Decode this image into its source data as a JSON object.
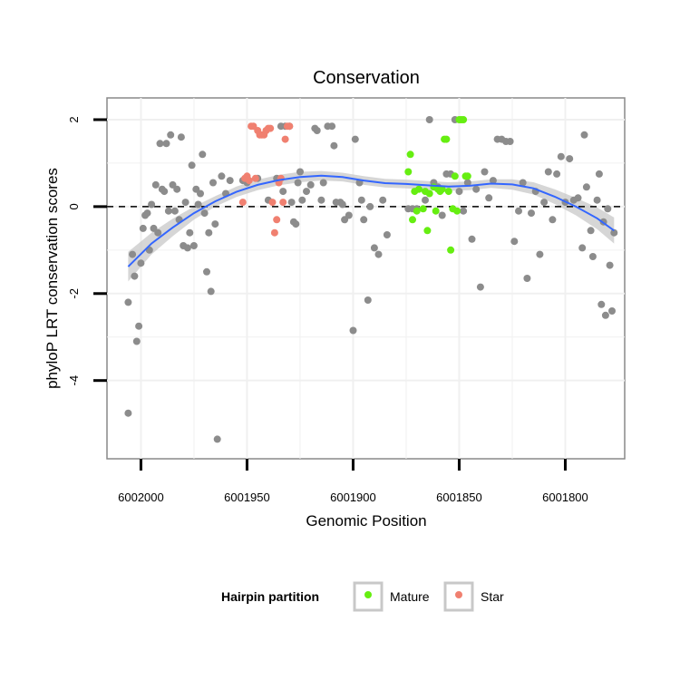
{
  "chart_data": {
    "type": "scatter",
    "title": "Conservation",
    "xlabel": "Genomic Position",
    "ylabel": "phyloP LRT conservation scores",
    "x_reversed": true,
    "xlim": [
      6002016,
      6001772
    ],
    "ylim": [
      -5.8,
      2.5
    ],
    "x_ticks": [
      6002000,
      6001950,
      6001900,
      6001850,
      6001800
    ],
    "x_tick_labels": [
      "6002000",
      "6001950",
      "6001900",
      "6001850",
      "6001800"
    ],
    "y_ticks": [
      -4,
      -2,
      0,
      2
    ],
    "y_tick_labels": [
      "-4",
      "-2",
      "0",
      "2"
    ],
    "reference_line": {
      "y": 0,
      "style": "dashed"
    },
    "colors": {
      "other": "#8c8c8c",
      "mature": "#66ee11",
      "star": "#f08070",
      "smooth": "#3366ff",
      "ribbon": "#c8c8c8",
      "panel_border": "#888888",
      "grid": "#f0f0f0"
    },
    "legend": {
      "title": "Hairpin partition",
      "entries": [
        {
          "label": "Mature",
          "color": "#66ee11"
        },
        {
          "label": "Star",
          "color": "#f08070"
        }
      ],
      "position": "bottom"
    },
    "smooth": {
      "x": [
        6002006,
        6001995,
        6001985,
        6001975,
        6001965,
        6001955,
        6001945,
        6001935,
        6001925,
        6001915,
        6001905,
        6001895,
        6001885,
        6001875,
        6001865,
        6001855,
        6001845,
        6001835,
        6001825,
        6001815,
        6001805,
        6001795,
        6001785,
        6001777
      ],
      "y": [
        -1.38,
        -0.85,
        -0.48,
        -0.15,
        0.12,
        0.34,
        0.5,
        0.61,
        0.68,
        0.71,
        0.68,
        0.6,
        0.54,
        0.52,
        0.49,
        0.46,
        0.48,
        0.53,
        0.51,
        0.42,
        0.23,
        0.0,
        -0.27,
        -0.55
      ],
      "lower": [
        -1.72,
        -1.1,
        -0.68,
        -0.3,
        0.0,
        0.22,
        0.38,
        0.49,
        0.56,
        0.6,
        0.58,
        0.5,
        0.44,
        0.42,
        0.39,
        0.36,
        0.38,
        0.43,
        0.39,
        0.28,
        0.06,
        -0.2,
        -0.52,
        -0.85
      ],
      "upper": [
        -1.04,
        -0.6,
        -0.28,
        0.0,
        0.24,
        0.46,
        0.62,
        0.73,
        0.8,
        0.82,
        0.78,
        0.7,
        0.64,
        0.62,
        0.59,
        0.56,
        0.58,
        0.63,
        0.63,
        0.56,
        0.4,
        0.2,
        -0.02,
        -0.25
      ]
    },
    "series": [
      {
        "name": "Other",
        "points": [
          [
            6002006,
            -2.2
          ],
          [
            6002006,
            -4.75
          ],
          [
            6002004,
            -1.1
          ],
          [
            6002003,
            -1.6
          ],
          [
            6002002,
            -3.1
          ],
          [
            6002001,
            -2.75
          ],
          [
            6002000,
            -1.3
          ],
          [
            6001999,
            -0.5
          ],
          [
            6001998,
            -0.2
          ],
          [
            6001997,
            -0.15
          ],
          [
            6001996,
            -1.0
          ],
          [
            6001995,
            0.05
          ],
          [
            6001994,
            -0.5
          ],
          [
            6001993,
            0.5
          ],
          [
            6001992,
            -0.6
          ],
          [
            6001991,
            1.45
          ],
          [
            6001990,
            0.4
          ],
          [
            6001989,
            0.35
          ],
          [
            6001988,
            1.45
          ],
          [
            6001987,
            -0.1
          ],
          [
            6001986,
            1.65
          ],
          [
            6001985,
            0.5
          ],
          [
            6001984,
            -0.1
          ],
          [
            6001983,
            0.4
          ],
          [
            6001982,
            -0.3
          ],
          [
            6001981,
            1.6
          ],
          [
            6001980,
            -0.9
          ],
          [
            6001979,
            0.1
          ],
          [
            6001978,
            -0.95
          ],
          [
            6001977,
            -0.6
          ],
          [
            6001976,
            0.95
          ],
          [
            6001975,
            -0.9
          ],
          [
            6001974,
            0.4
          ],
          [
            6001973,
            0.05
          ],
          [
            6001972,
            0.3
          ],
          [
            6001971,
            1.2
          ],
          [
            6001970,
            -0.15
          ],
          [
            6001969,
            -1.5
          ],
          [
            6001968,
            -0.6
          ],
          [
            6001967,
            -1.95
          ],
          [
            6001966,
            0.55
          ],
          [
            6001965,
            -0.4
          ],
          [
            6001964,
            -5.35
          ],
          [
            6001962,
            0.7
          ],
          [
            6001960,
            0.3
          ],
          [
            6001958,
            0.6
          ],
          [
            6001952,
            0.6
          ],
          [
            6001950,
            0.55
          ],
          [
            6001945,
            0.65
          ],
          [
            6001940,
            0.15
          ],
          [
            6001936,
            0.65
          ],
          [
            6001934,
            1.85
          ],
          [
            6001933,
            0.35
          ],
          [
            6001932,
            1.85
          ],
          [
            6001930,
            1.85
          ],
          [
            6001929,
            0.1
          ],
          [
            6001928,
            -0.35
          ],
          [
            6001927,
            -0.4
          ],
          [
            6001926,
            0.55
          ],
          [
            6001925,
            0.8
          ],
          [
            6001924,
            0.15
          ],
          [
            6001922,
            0.35
          ],
          [
            6001920,
            0.5
          ],
          [
            6001918,
            1.8
          ],
          [
            6001917,
            1.75
          ],
          [
            6001915,
            0.15
          ],
          [
            6001914,
            0.55
          ],
          [
            6001912,
            1.85
          ],
          [
            6001910,
            1.85
          ],
          [
            6001909,
            1.4
          ],
          [
            6001908,
            0.1
          ],
          [
            6001906,
            0.1
          ],
          [
            6001905,
            0.05
          ],
          [
            6001904,
            -0.3
          ],
          [
            6001902,
            -0.2
          ],
          [
            6001900,
            -2.85
          ],
          [
            6001899,
            1.55
          ],
          [
            6001897,
            0.55
          ],
          [
            6001896,
            0.15
          ],
          [
            6001895,
            -0.3
          ],
          [
            6001893,
            -2.15
          ],
          [
            6001892,
            0.0
          ],
          [
            6001890,
            -0.95
          ],
          [
            6001888,
            -1.1
          ],
          [
            6001886,
            0.15
          ],
          [
            6001884,
            -0.65
          ],
          [
            6001874,
            -0.05
          ],
          [
            6001872,
            -0.05
          ],
          [
            6001870,
            -0.05
          ],
          [
            6001866,
            0.15
          ],
          [
            6001864,
            2.0
          ],
          [
            6001862,
            0.55
          ],
          [
            6001860,
            0.45
          ],
          [
            6001858,
            -0.2
          ],
          [
            6001856,
            0.75
          ],
          [
            6001854,
            0.75
          ],
          [
            6001852,
            2.0
          ],
          [
            6001850,
            0.35
          ],
          [
            6001848,
            -0.1
          ],
          [
            6001846,
            0.55
          ],
          [
            6001844,
            -0.75
          ],
          [
            6001842,
            0.4
          ],
          [
            6001840,
            -1.85
          ],
          [
            6001838,
            0.8
          ],
          [
            6001836,
            0.2
          ],
          [
            6001834,
            0.6
          ],
          [
            6001832,
            1.55
          ],
          [
            6001830,
            1.55
          ],
          [
            6001828,
            1.5
          ],
          [
            6001826,
            1.5
          ],
          [
            6001824,
            -0.8
          ],
          [
            6001822,
            -0.1
          ],
          [
            6001820,
            0.55
          ],
          [
            6001818,
            -1.65
          ],
          [
            6001816,
            -0.15
          ],
          [
            6001814,
            0.35
          ],
          [
            6001812,
            -1.1
          ],
          [
            6001810,
            0.1
          ],
          [
            6001808,
            0.8
          ],
          [
            6001806,
            -0.3
          ],
          [
            6001804,
            0.75
          ],
          [
            6001802,
            1.15
          ],
          [
            6001800,
            0.1
          ],
          [
            6001798,
            1.1
          ],
          [
            6001796,
            0.15
          ],
          [
            6001794,
            0.2
          ],
          [
            6001792,
            -0.95
          ],
          [
            6001791,
            1.65
          ],
          [
            6001790,
            0.45
          ],
          [
            6001788,
            -0.55
          ],
          [
            6001787,
            -1.15
          ],
          [
            6001785,
            0.15
          ],
          [
            6001784,
            0.75
          ],
          [
            6001783,
            -2.25
          ],
          [
            6001782,
            -0.35
          ],
          [
            6001781,
            -2.5
          ],
          [
            6001780,
            -0.05
          ],
          [
            6001779,
            -1.35
          ],
          [
            6001778,
            -2.4
          ],
          [
            6001777,
            -0.6
          ]
        ]
      },
      {
        "name": "Mature",
        "points": [
          [
            6001874,
            0.8
          ],
          [
            6001873,
            1.2
          ],
          [
            6001872,
            -0.3
          ],
          [
            6001871,
            0.35
          ],
          [
            6001870,
            -0.1
          ],
          [
            6001869,
            0.4
          ],
          [
            6001867,
            -0.05
          ],
          [
            6001866,
            0.35
          ],
          [
            6001865,
            -0.55
          ],
          [
            6001864,
            0.3
          ],
          [
            6001862,
            0.45
          ],
          [
            6001861,
            -0.1
          ],
          [
            6001860,
            0.4
          ],
          [
            6001859,
            0.35
          ],
          [
            6001858,
            0.4
          ],
          [
            6001857,
            1.55
          ],
          [
            6001856,
            1.55
          ],
          [
            6001855,
            0.35
          ],
          [
            6001854,
            -1.0
          ],
          [
            6001853,
            -0.05
          ],
          [
            6001852,
            0.7
          ],
          [
            6001851,
            -0.1
          ],
          [
            6001850,
            2.0
          ],
          [
            6001849,
            2.0
          ],
          [
            6001848,
            2.0
          ],
          [
            6001847,
            0.7
          ],
          [
            6001846,
            0.7
          ]
        ]
      },
      {
        "name": "Star",
        "points": [
          [
            6001952,
            0.1
          ],
          [
            6001951,
            0.65
          ],
          [
            6001950,
            0.7
          ],
          [
            6001949,
            0.6
          ],
          [
            6001948,
            1.85
          ],
          [
            6001947,
            1.85
          ],
          [
            6001946,
            0.65
          ],
          [
            6001945,
            1.75
          ],
          [
            6001944,
            1.65
          ],
          [
            6001943,
            1.65
          ],
          [
            6001942,
            1.65
          ],
          [
            6001941,
            1.75
          ],
          [
            6001940,
            1.8
          ],
          [
            6001939,
            1.8
          ],
          [
            6001938,
            0.1
          ],
          [
            6001937,
            -0.6
          ],
          [
            6001936,
            -0.3
          ],
          [
            6001935,
            0.55
          ],
          [
            6001934,
            0.65
          ],
          [
            6001933,
            0.1
          ],
          [
            6001932,
            1.55
          ],
          [
            6001931,
            1.85
          ],
          [
            6001930,
            1.85
          ]
        ]
      }
    ]
  }
}
